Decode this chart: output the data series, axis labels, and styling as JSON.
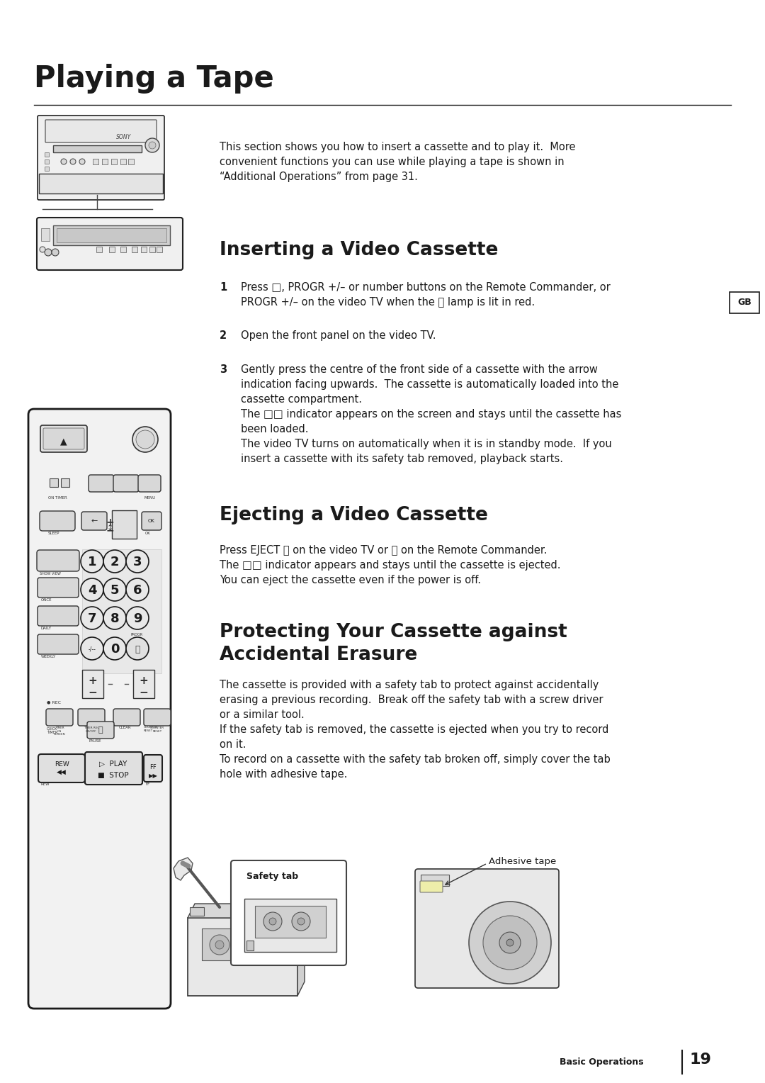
{
  "bg_color": "#ffffff",
  "title": "Playing a Tape",
  "title_fontsize": 30,
  "title_fontweight": "bold",
  "section1_head": "Inserting a Video Cassette",
  "section1_fontsize": 19,
  "section2_head": "Ejecting a Video Cassette",
  "section2_fontsize": 19,
  "section3_head": "Protecting Your Cassette against\nAccidental Erasure",
  "section3_fontsize": 19,
  "intro_text": "This section shows you how to insert a cassette and to play it.  More\nconvenient functions you can use while playing a tape is shown in\n“Additional Operations” from page 31.",
  "step1_num": "1",
  "step1_text": "Press □, PROGR +/– or number buttons on the Remote Commander, or\nPROGR +/– on the video TV when the ⏻ lamp is lit in red.",
  "step2_num": "2",
  "step2_text": "Open the front panel on the video TV.",
  "step3_num": "3",
  "step3_text": "Gently press the centre of the front side of a cassette with the arrow\nindication facing upwards.  The cassette is automatically loaded into the\ncassette compartment.\nThe □□ indicator appears on the screen and stays until the cassette has\nbeen loaded.\nThe video TV turns on automatically when it is in standby mode.  If you\ninsert a cassette with its safety tab removed, playback starts.",
  "eject_text": "Press EJECT ⏫ on the video TV or ⏫ on the Remote Commander.\nThe □□ indicator appears and stays until the cassette is ejected.\nYou can eject the cassette even if the power is off.",
  "protect_text": "The cassette is provided with a safety tab to protect against accidentally\nerasing a previous recording.  Break off the safety tab with a screw driver\nor a similar tool.\nIf the safety tab is removed, the cassette is ejected when you try to record\non it.\nTo record on a cassette with the safety tab broken off, simply cover the tab\nhole with adhesive tape.",
  "safety_label": "Safety tab",
  "adhesive_label": "Adhesive tape",
  "gb_label": "GB",
  "footer_text": "Basic Operations",
  "footer_page": "19",
  "body_fontsize": 10.5,
  "step_num_fontsize": 10.5
}
